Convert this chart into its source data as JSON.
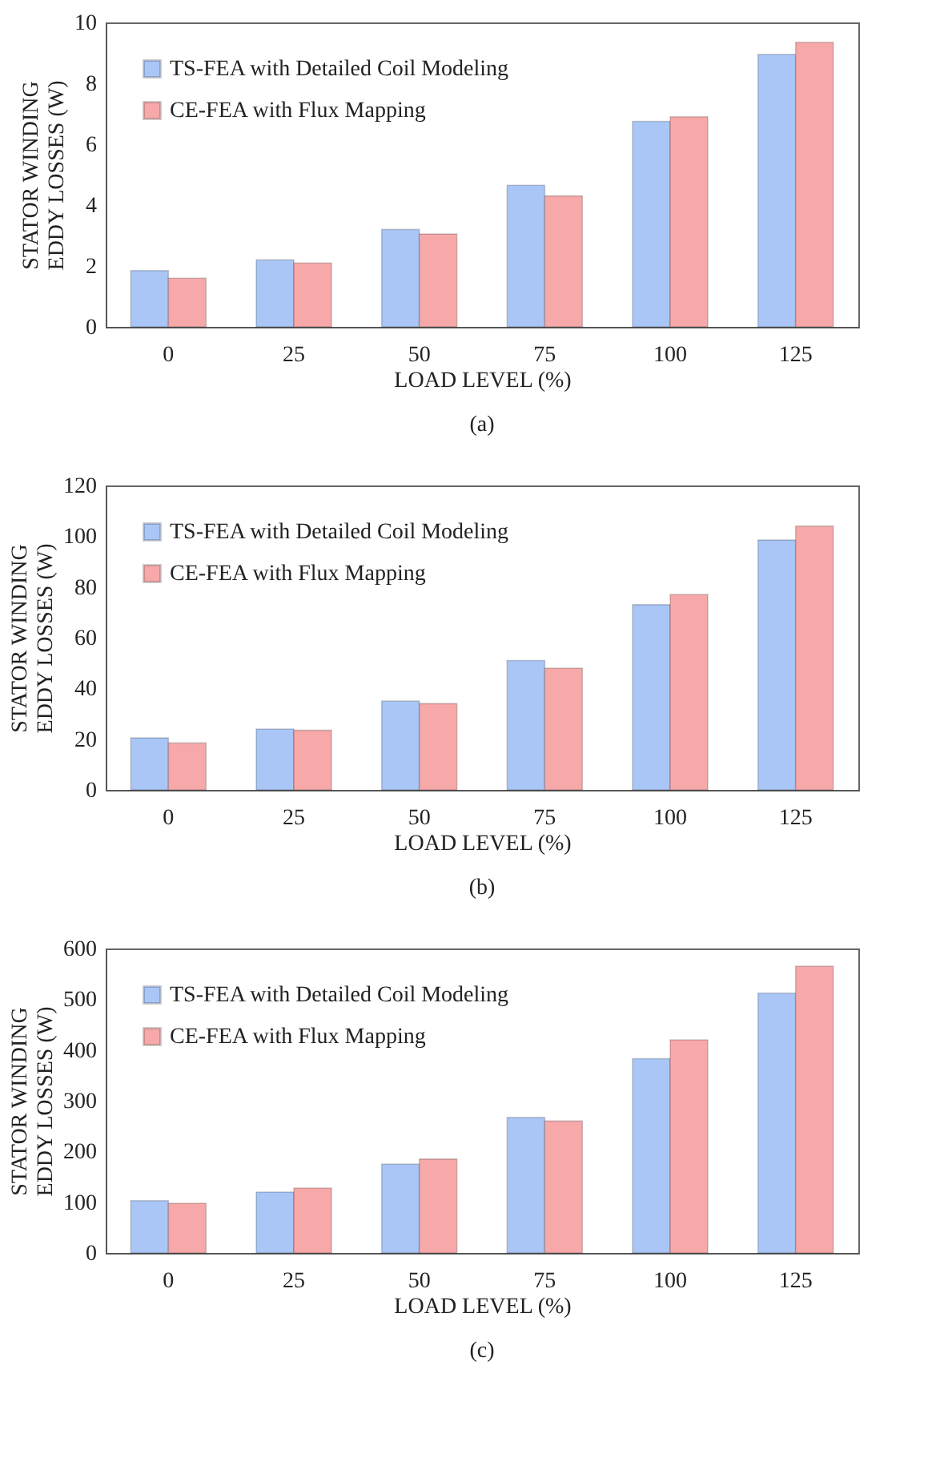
{
  "chart_data": [
    {
      "type": "bar",
      "categories": [
        "0",
        "25",
        "50",
        "75",
        "100",
        "125"
      ],
      "xlabel": "LOAD LEVEL (%)",
      "ylabel": "STATOR WINDING\nEDDY LOSSES (W)",
      "ylim": [
        0,
        10
      ],
      "yticks": [
        0,
        2,
        4,
        6,
        8,
        10
      ],
      "legend": "top left",
      "annotations": [
        "(a)"
      ],
      "series": [
        {
          "name": "TS-FEA with Detailed Coil Modeling",
          "color": "#a9c6f7",
          "values": [
            1.85,
            2.2,
            3.2,
            4.65,
            6.75,
            8.95
          ]
        },
        {
          "name": "CE-FEA with Flux Mapping",
          "color": "#f7a9a9",
          "values": [
            1.6,
            2.1,
            3.05,
            4.3,
            6.9,
            9.35
          ]
        }
      ]
    },
    {
      "type": "bar",
      "categories": [
        "0",
        "25",
        "50",
        "75",
        "100",
        "125"
      ],
      "xlabel": "LOAD LEVEL (%)",
      "ylabel": "STATOR WINDING\nEDDY LOSSES (W)",
      "ylim": [
        0,
        120
      ],
      "yticks": [
        0,
        20,
        40,
        60,
        80,
        100,
        120
      ],
      "legend": "top left",
      "annotations": [
        "(b)"
      ],
      "series": [
        {
          "name": "TS-FEA with Detailed Coil Modeling",
          "color": "#a9c6f7",
          "values": [
            20.5,
            24,
            35,
            51,
            73,
            98.5
          ]
        },
        {
          "name": "CE-FEA with Flux Mapping",
          "color": "#f7a9a9",
          "values": [
            18.5,
            23.5,
            34,
            48,
            77,
            104
          ]
        }
      ]
    },
    {
      "type": "bar",
      "categories": [
        "0",
        "25",
        "50",
        "75",
        "100",
        "125"
      ],
      "xlabel": "LOAD LEVEL (%)",
      "ylabel": "STATOR WINDING\nEDDY LOSSES (W)",
      "ylim": [
        0,
        600
      ],
      "yticks": [
        0,
        100,
        200,
        300,
        400,
        500,
        600
      ],
      "legend": "top left",
      "annotations": [
        "(c)"
      ],
      "series": [
        {
          "name": "TS-FEA with Detailed Coil Modeling",
          "color": "#a9c6f7",
          "values": [
            103,
            120,
            175,
            267,
            383,
            512
          ]
        },
        {
          "name": "CE-FEA with Flux Mapping",
          "color": "#f7a9a9",
          "values": [
            98,
            128,
            185,
            260,
            420,
            565
          ]
        }
      ]
    }
  ]
}
